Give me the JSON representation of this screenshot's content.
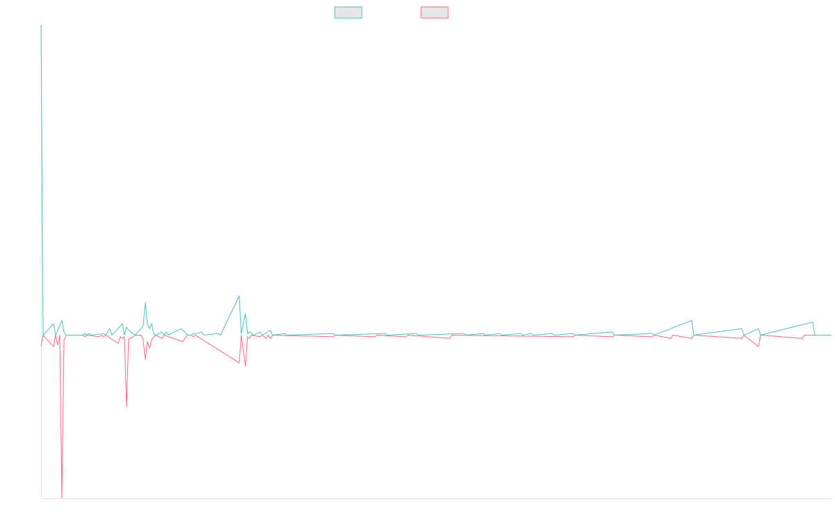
{
  "chart_data": {
    "type": "line",
    "title": "",
    "xlabel": "",
    "ylabel": "",
    "grid": false,
    "legend": "top-center",
    "x_count": 380,
    "ylim": [
      -1,
      1.9
    ],
    "series": [
      {
        "color": "#4bc0c0",
        "sparse": [
          [
            0,
            1.9
          ],
          [
            1,
            0
          ],
          [
            6,
            0.07
          ],
          [
            7,
            0
          ],
          [
            10,
            0.09
          ],
          [
            11,
            0.02
          ],
          [
            12,
            0
          ],
          [
            20,
            0
          ],
          [
            21,
            0.01
          ],
          [
            22,
            0
          ],
          [
            23,
            0.01
          ],
          [
            24,
            0
          ],
          [
            30,
            0.01
          ],
          [
            31,
            0
          ],
          [
            33,
            0.04
          ],
          [
            34,
            0
          ],
          [
            39,
            0.07
          ],
          [
            40,
            0
          ],
          [
            41,
            0.05
          ],
          [
            42,
            0.03
          ],
          [
            43,
            0.02
          ],
          [
            44,
            0.01
          ],
          [
            45,
            0
          ],
          [
            48,
            0.04
          ],
          [
            49,
            0.06
          ],
          [
            50,
            0.2
          ],
          [
            51,
            0.07
          ],
          [
            52,
            0.04
          ],
          [
            53,
            0.07
          ],
          [
            54,
            0.01
          ],
          [
            55,
            0
          ],
          [
            58,
            0.02
          ],
          [
            59,
            0
          ],
          [
            60,
            0.02
          ],
          [
            61,
            0
          ],
          [
            67,
            0.04
          ],
          [
            68,
            0.03
          ],
          [
            69,
            0.02
          ],
          [
            70,
            0
          ],
          [
            72,
            0
          ],
          [
            73,
            0.01
          ],
          [
            74,
            0.01
          ],
          [
            75,
            0.01
          ],
          [
            77,
            0.02
          ],
          [
            78,
            0
          ],
          [
            85,
            0.01
          ],
          [
            86,
            0
          ],
          [
            95,
            0.24
          ],
          [
            96,
            0.01
          ],
          [
            98,
            0.13
          ],
          [
            99,
            0.01
          ],
          [
            100,
            0.02
          ],
          [
            101,
            0.01
          ],
          [
            102,
            0
          ],
          [
            105,
            0.02
          ],
          [
            106,
            0
          ],
          [
            110,
            0.03
          ],
          [
            111,
            0
          ],
          [
            117,
            0.01
          ],
          [
            118,
            0
          ],
          [
            140,
            0.01
          ],
          [
            141,
            0
          ],
          [
            165,
            0.01
          ],
          [
            166,
            0
          ],
          [
            180,
            0.01
          ],
          [
            181,
            0
          ],
          [
            203,
            0.01
          ],
          [
            204,
            0
          ],
          [
            212,
            0.01
          ],
          [
            213,
            0
          ],
          [
            220,
            0.01
          ],
          [
            221,
            0
          ],
          [
            230,
            0.01
          ],
          [
            231,
            0
          ],
          [
            235,
            0.01
          ],
          [
            236,
            0
          ],
          [
            245,
            0.01
          ],
          [
            246,
            0
          ],
          [
            255,
            0.01
          ],
          [
            256,
            0
          ],
          [
            274,
            0.02
          ],
          [
            275,
            0
          ],
          [
            293,
            0.01
          ],
          [
            294,
            0
          ],
          [
            312,
            0.09
          ],
          [
            313,
            0
          ],
          [
            336,
            0.04
          ],
          [
            337,
            0
          ],
          [
            344,
            0.04
          ],
          [
            345,
            0
          ],
          [
            370,
            0.08
          ],
          [
            371,
            0
          ],
          [
            379,
            0
          ]
        ]
      },
      {
        "color": "#ff6384",
        "sparse": [
          [
            0,
            -0.07
          ],
          [
            1,
            0
          ],
          [
            6,
            -0.07
          ],
          [
            7,
            0
          ],
          [
            8,
            -0.06
          ],
          [
            9,
            0
          ],
          [
            10,
            -1.0
          ],
          [
            11,
            -0.03
          ],
          [
            12,
            0
          ],
          [
            20,
            0
          ],
          [
            21,
            -0.01
          ],
          [
            22,
            0
          ],
          [
            28,
            -0.01
          ],
          [
            29,
            0
          ],
          [
            30,
            -0.01
          ],
          [
            31,
            0
          ],
          [
            37,
            -0.05
          ],
          [
            38,
            -0.01
          ],
          [
            39,
            -0.02
          ],
          [
            40,
            -0.01
          ],
          [
            41,
            -0.44
          ],
          [
            42,
            -0.02
          ],
          [
            43,
            -0.02
          ],
          [
            44,
            -0.01
          ],
          [
            45,
            0
          ],
          [
            48,
            0
          ],
          [
            49,
            -0.03
          ],
          [
            50,
            -0.15
          ],
          [
            51,
            -0.04
          ],
          [
            52,
            -0.08
          ],
          [
            53,
            -0.03
          ],
          [
            54,
            -0.01
          ],
          [
            55,
            0
          ],
          [
            58,
            -0.02
          ],
          [
            59,
            0
          ],
          [
            68,
            -0.04
          ],
          [
            69,
            -0.02
          ],
          [
            70,
            0
          ],
          [
            72,
            0
          ],
          [
            73,
            -0.01
          ],
          [
            74,
            0
          ],
          [
            95,
            -0.17
          ],
          [
            96,
            0
          ],
          [
            98,
            -0.19
          ],
          [
            99,
            -0.01
          ],
          [
            100,
            -0.02
          ],
          [
            101,
            0
          ],
          [
            105,
            -0.01
          ],
          [
            106,
            0
          ],
          [
            108,
            -0.02
          ],
          [
            109,
            0
          ],
          [
            110,
            -0.02
          ],
          [
            111,
            0
          ],
          [
            140,
            -0.01
          ],
          [
            141,
            0
          ],
          [
            160,
            -0.01
          ],
          [
            161,
            0
          ],
          [
            175,
            -0.01
          ],
          [
            176,
            0
          ],
          [
            196,
            -0.02
          ],
          [
            197,
            0
          ],
          [
            255,
            -0.01
          ],
          [
            256,
            0
          ],
          [
            274,
            -0.01
          ],
          [
            275,
            0
          ],
          [
            293,
            -0.01
          ],
          [
            294,
            0
          ],
          [
            302,
            -0.02
          ],
          [
            303,
            0
          ],
          [
            312,
            -0.02
          ],
          [
            313,
            0
          ],
          [
            336,
            -0.02
          ],
          [
            337,
            0
          ],
          [
            344,
            -0.07
          ],
          [
            345,
            0
          ],
          [
            365,
            -0.02
          ],
          [
            366,
            0
          ],
          [
            379,
            0
          ]
        ]
      }
    ]
  }
}
